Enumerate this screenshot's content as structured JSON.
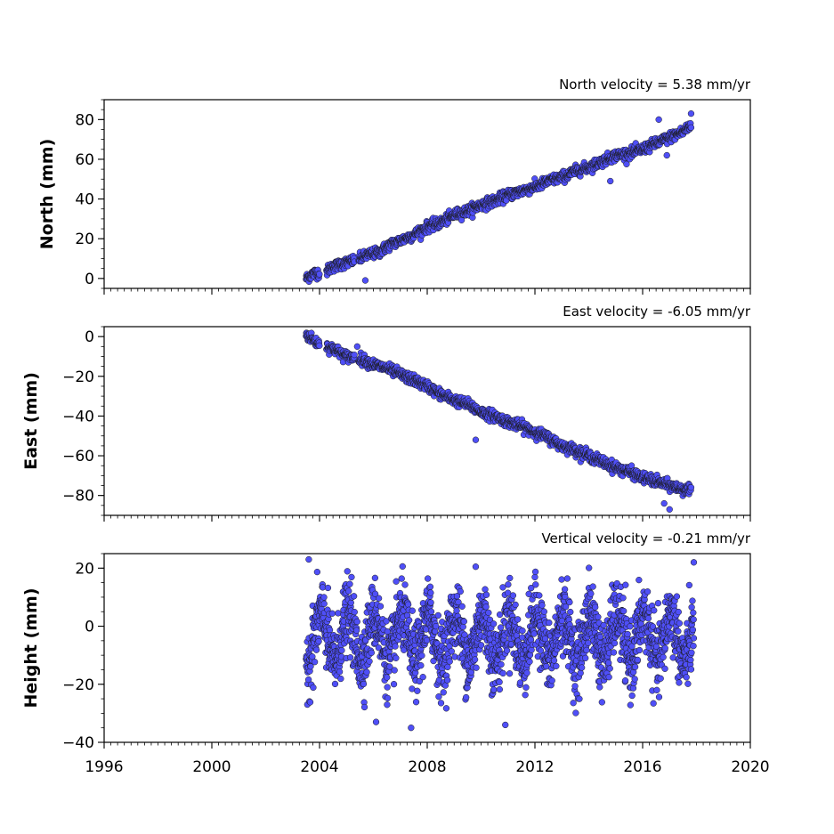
{
  "colors": {
    "marker_fill": "#4f4ff7",
    "marker_edge": "#1a1a1a",
    "axes": "#000000"
  },
  "chart_data": [
    {
      "type": "scatter",
      "panel": "north",
      "ylabel": "North (mm)",
      "annotation": "North velocity = 5.38 mm/yr",
      "xlim": [
        1996,
        2020
      ],
      "ylim": [
        -5,
        90
      ],
      "yticks": [
        0,
        20,
        40,
        60,
        80
      ],
      "yticklabels": [
        "0",
        "20",
        "40",
        "60",
        "80"
      ],
      "grid": false,
      "series": [
        {
          "x": [
            2003.5,
            2003.7,
            2003.9,
            2004.1,
            2004.5,
            2005.0,
            2005.5,
            2005.8,
            2006.2,
            2006.6,
            2007.0,
            2007.5,
            2008.0,
            2008.5,
            2009.0,
            2009.5,
            2010.0,
            2010.5,
            2011.0,
            2011.5,
            2012.0,
            2012.5,
            2013.0,
            2013.5,
            2014.0,
            2014.5,
            2015.0,
            2015.5,
            2016.0,
            2016.5,
            2017.0,
            2017.5,
            2017.8
          ],
          "y": [
            0,
            2,
            3,
            2,
            6,
            8,
            10,
            12,
            13,
            17,
            19,
            22,
            26,
            28,
            32,
            34,
            37,
            39,
            42,
            44,
            46,
            49,
            51,
            54,
            56,
            59,
            62,
            63,
            65,
            68,
            71,
            74,
            77
          ]
        }
      ],
      "outliers": [
        {
          "x": 2005.7,
          "y": -1
        },
        {
          "x": 2014.8,
          "y": 49
        },
        {
          "x": 2016.6,
          "y": 80
        },
        {
          "x": 2017.8,
          "y": 83
        },
        {
          "x": 2016.9,
          "y": 62
        }
      ]
    },
    {
      "type": "scatter",
      "panel": "east",
      "ylabel": "East (mm)",
      "annotation": "East velocity = -6.05 mm/yr",
      "xlim": [
        1996,
        2020
      ],
      "ylim": [
        -90,
        5
      ],
      "yticks": [
        0,
        -20,
        -40,
        -60,
        -80
      ],
      "yticklabels": [
        "0",
        "−20",
        "−40",
        "−60",
        "−80"
      ],
      "grid": false,
      "series": [
        {
          "x": [
            2003.5,
            2003.7,
            2003.9,
            2004.1,
            2004.5,
            2005.0,
            2005.5,
            2006.0,
            2006.5,
            2007.0,
            2007.5,
            2008.0,
            2008.5,
            2009.0,
            2009.5,
            2010.0,
            2010.5,
            2011.0,
            2011.5,
            2012.0,
            2012.5,
            2013.0,
            2013.5,
            2014.0,
            2014.5,
            2015.0,
            2015.5,
            2016.0,
            2016.5,
            2017.0,
            2017.5,
            2017.8
          ],
          "y": [
            1,
            -1,
            -3,
            -4,
            -6,
            -10,
            -11,
            -14,
            -16,
            -19,
            -22,
            -25,
            -29,
            -32,
            -34,
            -38,
            -40,
            -43,
            -45,
            -48,
            -51,
            -55,
            -57,
            -60,
            -63,
            -66,
            -68,
            -71,
            -73,
            -75,
            -77,
            -78
          ]
        }
      ],
      "outliers": [
        {
          "x": 2009.8,
          "y": -52
        },
        {
          "x": 2017.0,
          "y": -87
        },
        {
          "x": 2016.8,
          "y": -84
        },
        {
          "x": 2005.4,
          "y": -5
        }
      ]
    },
    {
      "type": "scatter",
      "panel": "height",
      "ylabel": "Height (mm)",
      "annotation": "Vertical velocity = -0.21 mm/yr",
      "xlim": [
        1996,
        2020
      ],
      "ylim": [
        -40,
        25
      ],
      "yticks": [
        20,
        0,
        -20,
        -40
      ],
      "yticklabels": [
        "20",
        "0",
        "−20",
        "−40"
      ],
      "xticks": [
        1996,
        2000,
        2004,
        2008,
        2012,
        2016,
        2020
      ],
      "xticklabels": [
        "1996",
        "2000",
        "2004",
        "2008",
        "2012",
        "2016",
        "2020"
      ],
      "grid": false,
      "series": [
        {
          "x_range": [
            2003.5,
            2017.9
          ],
          "mean": -4,
          "seasonal_amplitude": 8,
          "scatter_amplitude": 6
        }
      ],
      "outliers": [
        {
          "x": 2003.6,
          "y": 23
        },
        {
          "x": 2007.4,
          "y": -35
        },
        {
          "x": 2009.8,
          "y": 20.5
        },
        {
          "x": 2010.9,
          "y": -34
        },
        {
          "x": 2017.9,
          "y": 22
        },
        {
          "x": 2006.1,
          "y": -33
        }
      ]
    }
  ]
}
